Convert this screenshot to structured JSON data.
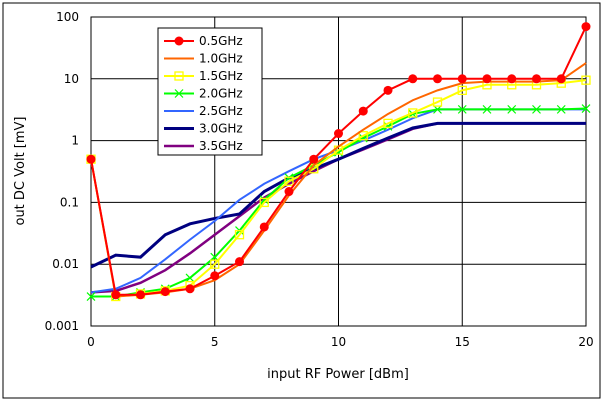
{
  "chart_data": {
    "type": "line",
    "title": "",
    "xlabel": "input RF Power [dBm]",
    "ylabel": "out DC Volt [mV]",
    "xlim": [
      0,
      20
    ],
    "ylim": [
      0.001,
      100
    ],
    "yscale": "log",
    "grid": true,
    "legend_placement": "top-left",
    "x_ticks": [
      "0",
      "5",
      "10",
      "15",
      "20"
    ],
    "y_ticks": [
      "0.001",
      "0.01",
      "0.1",
      "1",
      "10",
      "100"
    ],
    "x": [
      0,
      1,
      2,
      3,
      4,
      5,
      6,
      7,
      8,
      9,
      10,
      11,
      12,
      13,
      14,
      15,
      16,
      17,
      18,
      19,
      20
    ],
    "series": [
      {
        "name": "0.5GHz",
        "color": "#ff0000",
        "marker": "circle",
        "values": [
          0.5,
          0.0032,
          0.0032,
          0.0036,
          0.004,
          0.0065,
          0.011,
          0.04,
          0.15,
          0.5,
          1.3,
          3,
          6.5,
          10,
          10,
          10,
          10,
          10,
          10,
          10,
          70
        ]
      },
      {
        "name": "1.0GHz",
        "color": "#ff6600",
        "marker": "none",
        "values": [
          0.5,
          0.003,
          0.0032,
          0.0035,
          0.004,
          0.0055,
          0.01,
          0.035,
          0.13,
          0.4,
          0.8,
          1.5,
          2.7,
          4.5,
          6.5,
          8.5,
          9,
          9,
          9,
          9.5,
          18
        ]
      },
      {
        "name": "1.5GHz",
        "color": "#ffff00",
        "marker": "square",
        "values": [
          0.5,
          0.003,
          0.0033,
          0.0037,
          0.0045,
          0.01,
          0.03,
          0.1,
          0.22,
          0.35,
          0.7,
          1.2,
          1.9,
          2.8,
          4.2,
          6.5,
          8,
          8,
          8,
          8.5,
          9.5
        ]
      },
      {
        "name": "2.0GHz",
        "color": "#00ff00",
        "marker": "x",
        "values": [
          0.003,
          0.003,
          0.0035,
          0.004,
          0.006,
          0.013,
          0.035,
          0.11,
          0.25,
          0.4,
          0.65,
          1.1,
          1.7,
          2.7,
          3.2,
          3.2,
          3.2,
          3.2,
          3.2,
          3.2,
          3.3
        ]
      },
      {
        "name": "2.5GHz",
        "color": "#3366ff",
        "marker": "none",
        "values": [
          0.0035,
          0.004,
          0.006,
          0.012,
          0.025,
          0.05,
          0.11,
          0.2,
          0.32,
          0.5,
          0.7,
          1.0,
          1.5,
          2.3,
          3.2,
          3.2,
          3.2,
          3.2,
          3.2,
          3.2,
          3.2
        ]
      },
      {
        "name": "3.0GHz",
        "color": "#000080",
        "marker": "none",
        "values": [
          0.009,
          0.014,
          0.013,
          0.03,
          0.045,
          0.055,
          0.065,
          0.15,
          0.25,
          0.35,
          0.5,
          0.75,
          1.1,
          1.6,
          1.9,
          1.9,
          1.9,
          1.9,
          1.9,
          1.9,
          1.9
        ]
      },
      {
        "name": "3.5GHz",
        "color": "#800080",
        "marker": "none",
        "values": [
          0.0035,
          0.0037,
          0.005,
          0.008,
          0.015,
          0.03,
          0.06,
          0.12,
          0.2,
          0.32,
          0.5,
          0.72,
          1.05,
          1.55,
          1.9,
          1.9,
          1.9,
          1.9,
          1.9,
          1.9,
          1.9
        ]
      }
    ]
  }
}
